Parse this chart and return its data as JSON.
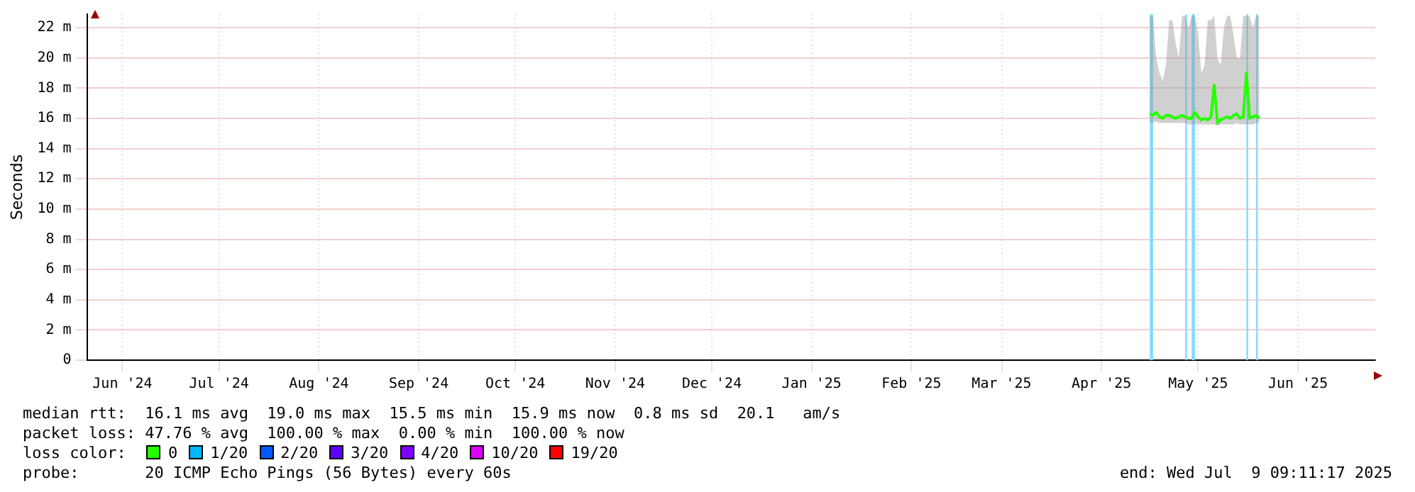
{
  "chart_data": {
    "type": "line",
    "ylabel": "Seconds",
    "x": [
      "2025-04-30",
      "2025-05-01",
      "2025-05-02",
      "2025-05-03",
      "2025-05-04",
      "2025-05-05",
      "2025-05-06",
      "2025-05-07",
      "2025-05-08",
      "2025-05-09",
      "2025-05-10",
      "2025-05-11",
      "2025-05-12",
      "2025-05-13",
      "2025-05-14",
      "2025-05-15",
      "2025-05-16",
      "2025-05-17",
      "2025-05-18",
      "2025-05-19",
      "2025-05-20",
      "2025-05-21",
      "2025-05-22",
      "2025-05-23",
      "2025-05-24",
      "2025-05-25",
      "2025-05-26",
      "2025-05-27",
      "2025-05-28",
      "2025-05-29",
      "2025-05-30",
      "2025-05-31",
      "2025-06-01",
      "2025-06-02",
      "2025-06-03"
    ],
    "series": [
      {
        "color": "#26ff00",
        "values": [
          16.3,
          16.2,
          16.4,
          16.1,
          16.0,
          16.2,
          16.2,
          16.1,
          16.0,
          16.1,
          16.2,
          16.1,
          16.0,
          16.0,
          16.4,
          16.1,
          15.9,
          16.0,
          15.9,
          16.1,
          18.2,
          15.7,
          15.9,
          16.0,
          16.1,
          16.0,
          16.2,
          16.3,
          16.0,
          16.1,
          19.0,
          16.0,
          16.1,
          16.2,
          16.0
        ],
        "lower": [
          15.7,
          15.7,
          15.8,
          15.7,
          15.7,
          15.7,
          15.7,
          15.7,
          15.7,
          15.7,
          15.7,
          15.7,
          15.6,
          15.6,
          15.6,
          15.6,
          15.6,
          15.6,
          15.6,
          15.6,
          15.6,
          15.5,
          15.6,
          15.6,
          15.6,
          15.6,
          15.6,
          15.7,
          15.6,
          15.6,
          15.6,
          15.6,
          15.6,
          15.7,
          15.7
        ],
        "upper": [
          22.8,
          22.8,
          20.0,
          19.0,
          18.5,
          19.5,
          22.5,
          22.5,
          21.0,
          20.0,
          22.8,
          22.8,
          22.0,
          22.8,
          22.8,
          21.5,
          19.0,
          19.5,
          22.5,
          22.5,
          22.8,
          20.0,
          19.5,
          22.0,
          22.8,
          22.8,
          21.5,
          20.0,
          20.0,
          22.8,
          22.8,
          22.8,
          22.0,
          22.8,
          22.8
        ]
      }
    ],
    "xlim": [
      "2024-06-04",
      "2025-07-09"
    ],
    "xticks": [
      {
        "value": "2024-06-15",
        "label": "Jun '24"
      },
      {
        "value": "2024-07-15",
        "label": "Jul '24"
      },
      {
        "value": "2024-08-15",
        "label": "Aug '24"
      },
      {
        "value": "2024-09-15",
        "label": "Sep '24"
      },
      {
        "value": "2024-10-15",
        "label": "Oct '24"
      },
      {
        "value": "2024-11-15",
        "label": "Nov '24"
      },
      {
        "value": "2024-12-15",
        "label": "Dec '24"
      },
      {
        "value": "2025-01-15",
        "label": "Jan '25"
      },
      {
        "value": "2025-02-15",
        "label": "Feb '25"
      },
      {
        "value": "2025-03-15",
        "label": "Mar '25"
      },
      {
        "value": "2025-04-15",
        "label": "Apr '25"
      },
      {
        "value": "2025-05-15",
        "label": "May '25"
      },
      {
        "value": "2025-06-15",
        "label": "Jun '25"
      }
    ],
    "ylim": [
      0,
      22.9
    ],
    "yticks": [
      0,
      {
        "value": 2,
        "label": "2 m"
      },
      {
        "value": 4,
        "label": "4 m"
      },
      {
        "value": 6,
        "label": "6 m"
      },
      {
        "value": 8,
        "label": "8 m"
      },
      {
        "value": 10,
        "label": "10 m"
      },
      {
        "value": 12,
        "label": "12 m"
      },
      {
        "value": 14,
        "label": "14 m"
      },
      {
        "value": 16,
        "label": "16 m"
      },
      {
        "value": 18,
        "label": "18 m"
      },
      {
        "value": 20,
        "label": "20 m"
      },
      {
        "value": 22,
        "label": "22 m"
      }
    ],
    "bands": [
      {
        "axis": "x",
        "from": "2025-04-30",
        "to": "2025-05-01",
        "color": "#80dcff"
      },
      {
        "axis": "x",
        "from": "2025-05-11",
        "to": "2025-05-11",
        "color": "#80dcff"
      },
      {
        "axis": "x",
        "from": "2025-05-13",
        "to": "2025-05-14",
        "color": "#80dcff"
      },
      {
        "axis": "x",
        "from": "2025-05-30",
        "to": "2025-05-30",
        "color": "#80dcff"
      },
      {
        "axis": "x",
        "from": "2025-06-02",
        "to": "2025-06-02",
        "color": "#80dcff"
      }
    ],
    "grid": true,
    "legend": false,
    "marker": "none",
    "line_style": "solid",
    "annotations": [
      "median rtt:  16.1 ms avg  19.0 ms max  15.5 ms min  15.9 ms now  0.8 ms sd  20.1   am/s",
      "packet loss: 47.76 % avg  100.00 % max  0.00 % min  100.00 % now",
      "loss color:",
      "0",
      "1/20",
      "2/20",
      "3/20",
      "4/20",
      "10/20",
      "19/20",
      "probe:       20 ICMP Echo Pings (56 Bytes) every 60s",
      "end: Wed Jul  9 09:11:17 2025"
    ]
  }
}
